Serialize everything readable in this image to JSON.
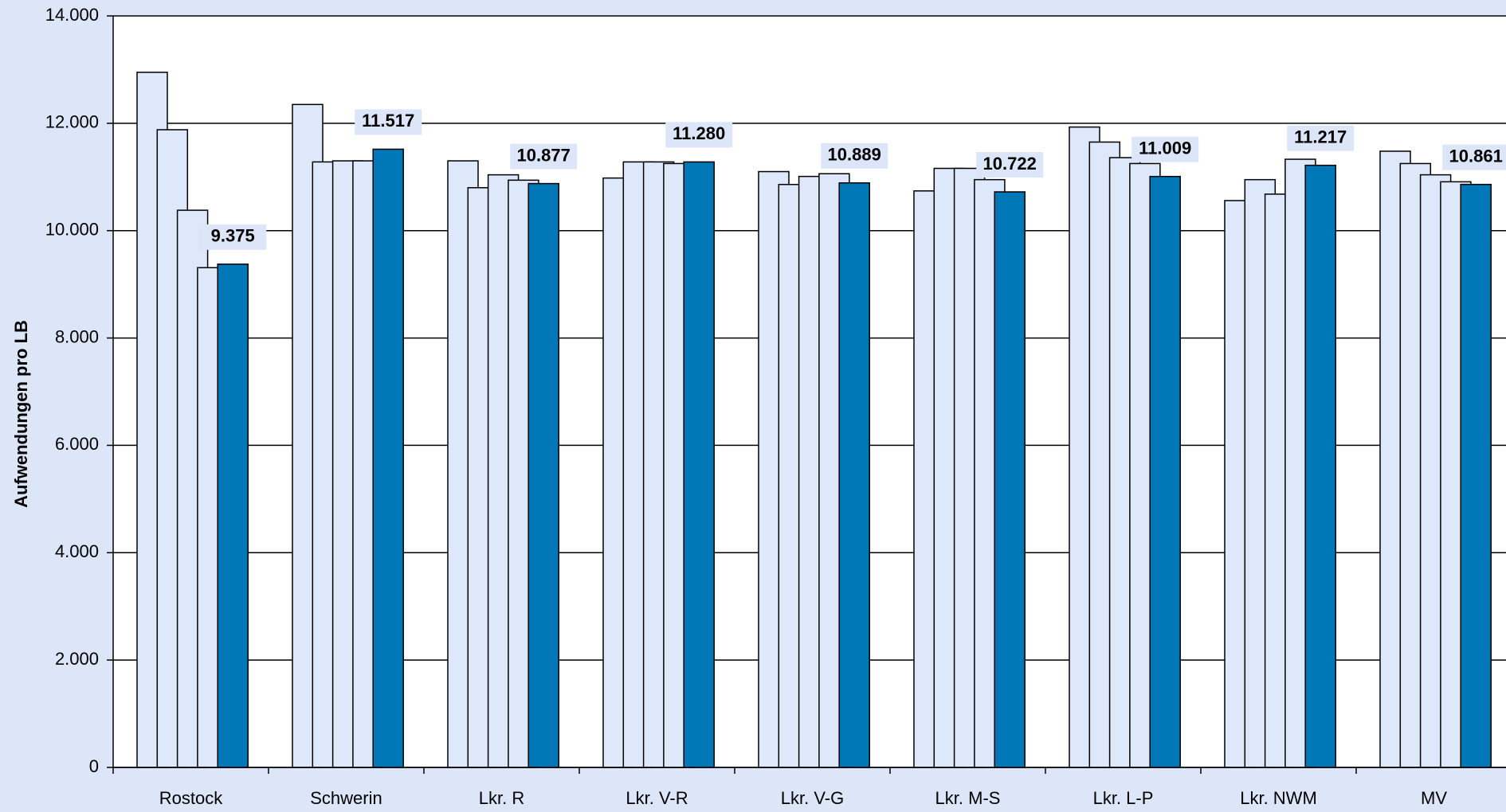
{
  "chart_data": {
    "type": "bar",
    "y_label": "Aufwendungen pro LB",
    "categories": [
      "Rostock",
      "Schwerin",
      "Lkr. R",
      "Lkr. V-R",
      "Lkr. V-G",
      "Lkr. M-S",
      "Lkr. L-P",
      "Lkr. NWM",
      "MV"
    ],
    "series": [
      {
        "color": "#dde8fa",
        "values": [
          12950,
          12350,
          11300,
          10980,
          11100,
          10740,
          11930,
          10560,
          11480
        ]
      },
      {
        "color": "#dde8fa",
        "values": [
          11880,
          11280,
          10800,
          11280,
          10860,
          11160,
          11650,
          10950,
          11250
        ]
      },
      {
        "color": "#dde8fa",
        "values": [
          10380,
          11300,
          11040,
          11280,
          11010,
          11160,
          11360,
          10680,
          11040
        ]
      },
      {
        "color": "#dde8fa",
        "values": [
          9310,
          11300,
          10940,
          11250,
          11060,
          10950,
          11250,
          11330,
          10910
        ]
      },
      {
        "color": "#0077b6",
        "values": [
          9375,
          11517,
          10877,
          11280,
          10889,
          10722,
          11009,
          11217,
          10861
        ],
        "value_labels": [
          "9.375",
          "11.517",
          "10.877",
          "11.280",
          "10.889",
          "10.722",
          "11.009",
          "11.217",
          "10.861"
        ]
      }
    ],
    "ylim": [
      0,
      14000
    ],
    "yticks": [
      0,
      {
        "value": 2000,
        "label": "2.000"
      },
      {
        "value": 4000,
        "label": "4.000"
      },
      {
        "value": 6000,
        "label": "6.000"
      },
      {
        "value": 8000,
        "label": "8.000"
      },
      {
        "value": 10000,
        "label": "10.000"
      },
      {
        "value": 12000,
        "label": "12.000"
      },
      {
        "value": 14000,
        "label": "14.000"
      }
    ],
    "grid": true
  }
}
